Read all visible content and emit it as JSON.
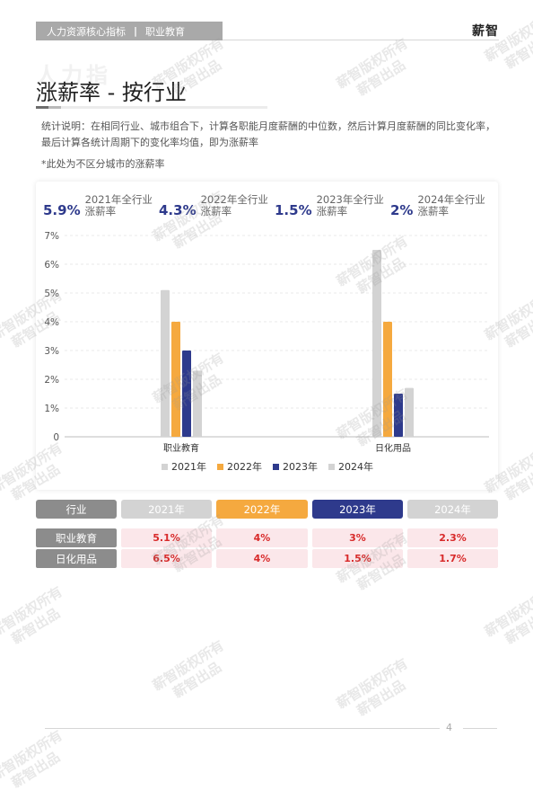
{
  "header": {
    "section": "人力资源核心指标",
    "subsection": "职业教育",
    "separator": "|",
    "brand": "薪智"
  },
  "ghost_title": "人力指",
  "page_title": "涨薪率 - 按行业",
  "description": "统计说明：在相同行业、城市组合下，计算各职能月度薪酬的中位数，然后计算月度薪酬的同比变化率，最后计算各统计周期下的变化率均值，即为涨薪率",
  "note": "*此处为不区分城市的涨薪率",
  "kpis": [
    {
      "value": "5.9%",
      "label_line1": "2021年全行业",
      "label_line2": "涨薪率"
    },
    {
      "value": "4.3%",
      "label_line1": "2022年全行业",
      "label_line2": "涨薪率"
    },
    {
      "value": "1.5%",
      "label_line1": "2023年全行业",
      "label_line2": "涨薪率"
    },
    {
      "value": "2%",
      "label_line1": "2024年全行业",
      "label_line2": "涨薪率"
    }
  ],
  "chart_data": {
    "type": "bar",
    "categories": [
      "职业教育",
      "日化用品"
    ],
    "series": [
      {
        "name": "2021年",
        "values": [
          5.1,
          6.5
        ],
        "color": "#d3d3d3"
      },
      {
        "name": "2022年",
        "values": [
          4.0,
          4.0
        ],
        "color": "#f5a93f"
      },
      {
        "name": "2023年",
        "values": [
          3.0,
          1.5
        ],
        "color": "#2e3a8c"
      },
      {
        "name": "2024年",
        "values": [
          2.3,
          1.7
        ],
        "color": "#d3d3d3"
      }
    ],
    "ylim": [
      0,
      7
    ],
    "yticks": [
      "0",
      "1%",
      "2%",
      "3%",
      "4%",
      "5%",
      "6%",
      "7%"
    ],
    "grid": true,
    "legend": "bottom"
  },
  "table": {
    "headers": [
      "行业",
      "2021年",
      "2022年",
      "2023年",
      "2024年"
    ],
    "header_colors": [
      "#8c8c8c",
      "#d3d3d3",
      "#f5a93f",
      "#2e3a8c",
      "#d3d3d3"
    ],
    "rows": [
      {
        "name": "职业教育",
        "values": [
          "5.1%",
          "4%",
          "3%",
          "2.3%"
        ]
      },
      {
        "name": "日化用品",
        "values": [
          "6.5%",
          "4%",
          "1.5%",
          "1.7%"
        ]
      }
    ]
  },
  "watermark": {
    "line1": "薪智版权所有",
    "line2": "薪智出品"
  },
  "page_number": "4"
}
